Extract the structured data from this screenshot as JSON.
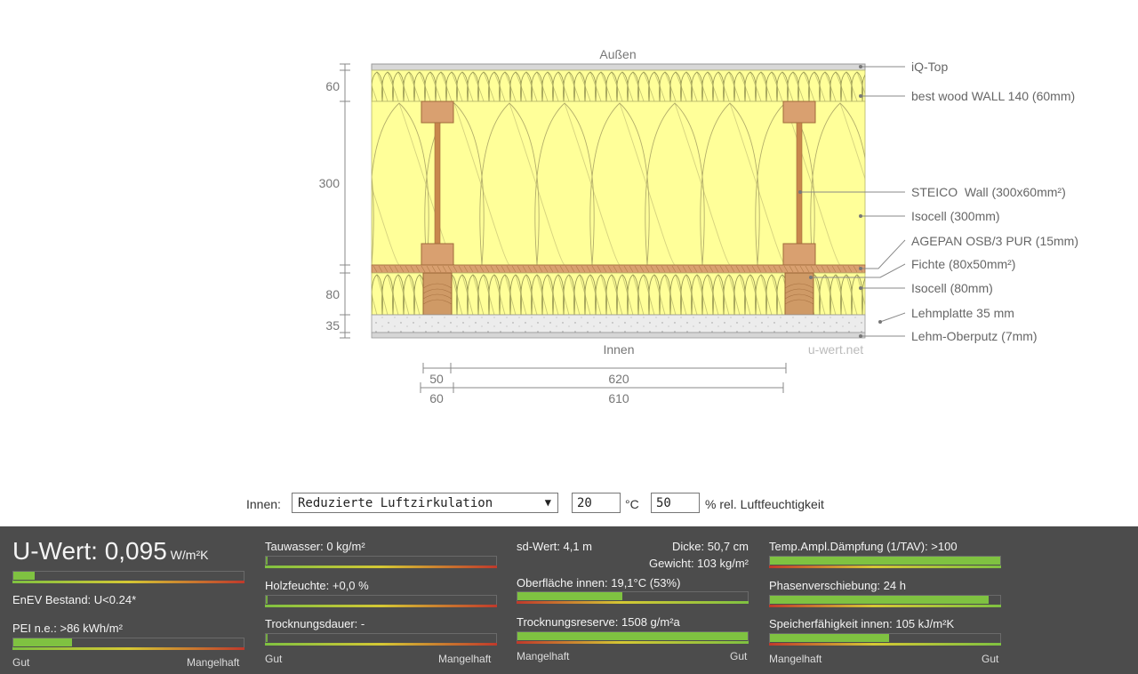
{
  "diagram": {
    "outside_label": "Außen",
    "inside_label": "Innen",
    "watermark": "u-wert.net",
    "dimensions_vertical": [
      "60",
      "300",
      "80",
      "35"
    ],
    "dimensions_horizontal": {
      "row1": [
        "50",
        "620"
      ],
      "row2": [
        "60",
        "610"
      ]
    },
    "layer_labels": [
      "iQ-Top",
      "best wood WALL 140 (60mm)",
      "STEICO  Wall (300x60mm²)",
      "Isocell (300mm)",
      "AGEPAN OSB/3 PUR (15mm)",
      "Fichte (80x50mm²)",
      "Isocell (80mm)",
      "Lehmplatte 35 mm",
      "Lehm-Oberputz (7mm)"
    ],
    "colors": {
      "insulation": "#ffff99",
      "wood": "#d9a070",
      "plaster": "#e6e6e6"
    }
  },
  "conditions": {
    "innen_label": "Innen:",
    "climate_select": "Reduzierte Luftzirkulation",
    "temperature": "20",
    "temperature_unit": "°C",
    "humidity": "50",
    "humidity_unit": "% rel. Luftfeuchtigkeit"
  },
  "results": {
    "uwert": {
      "label": "U-Wert: ",
      "value": "0,095",
      "unit": "W/m²K",
      "enev_label": "EnEV Bestand: U<0.24*",
      "level": 0.1
    },
    "pei": {
      "label": "PEI n.e.: >86 kWh/m²",
      "level": 0.26
    },
    "tauwasser": {
      "label": "Tauwasser: 0 kg/m²",
      "level": 0.0
    },
    "holzfeuchte": {
      "label": "Holzfeuchte: +0,0 %",
      "level": 0.0
    },
    "trocknungsdauer": {
      "label": "Trocknungsdauer: -",
      "level": 0.0
    },
    "sd": {
      "label": "sd-Wert: 4,1 m",
      "dicke": "Dicke: 50,7 cm",
      "gewicht": "Gewicht: 103 kg/m²"
    },
    "oberflaeche": {
      "label": "Oberfläche innen: 19,1°C (53%)",
      "level": 0.46
    },
    "trocknungsreserve": {
      "label": "Trocknungsreserve: 1508 g/m²a",
      "level": 1.0
    },
    "tav": {
      "label": "Temp.Ampl.Dämpfung (1/TAV): >100",
      "level": 1.0
    },
    "phase": {
      "label": "Phasenverschiebung: 24 h",
      "level": 0.95
    },
    "speicher": {
      "label": "Speicherfähigkeit innen: 105 kJ/m²K",
      "level": 0.52
    },
    "scale_good": "Gut",
    "scale_bad": "Mangelhaft"
  }
}
